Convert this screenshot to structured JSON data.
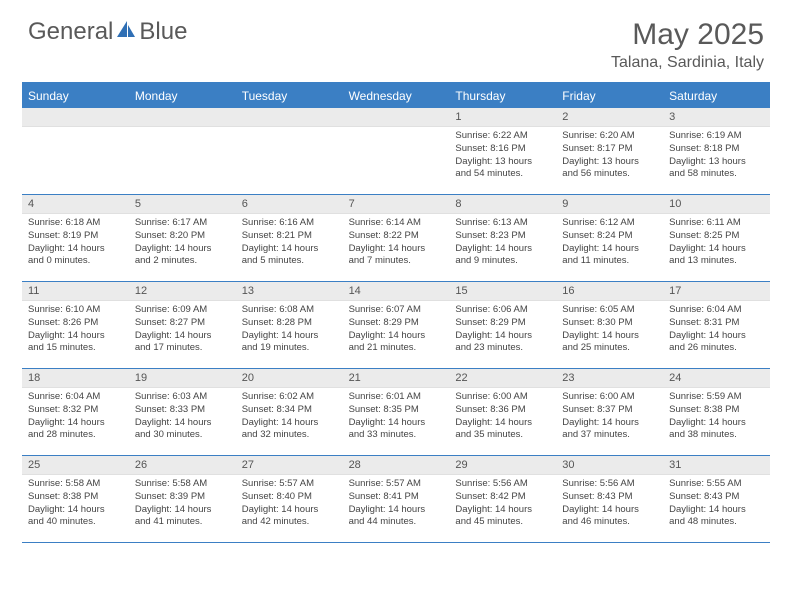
{
  "logo": {
    "text1": "General",
    "text2": "Blue",
    "icon_color": "#2f6fb5"
  },
  "title": "May 2025",
  "location": "Talana, Sardinia, Italy",
  "accent_color": "#3b7fc4",
  "daynum_bg": "#ebebeb",
  "day_names": [
    "Sunday",
    "Monday",
    "Tuesday",
    "Wednesday",
    "Thursday",
    "Friday",
    "Saturday"
  ],
  "weeks": [
    [
      null,
      null,
      null,
      null,
      {
        "n": "1",
        "sr": "6:22 AM",
        "ss": "8:16 PM",
        "dl": "13 hours and 54 minutes."
      },
      {
        "n": "2",
        "sr": "6:20 AM",
        "ss": "8:17 PM",
        "dl": "13 hours and 56 minutes."
      },
      {
        "n": "3",
        "sr": "6:19 AM",
        "ss": "8:18 PM",
        "dl": "13 hours and 58 minutes."
      }
    ],
    [
      {
        "n": "4",
        "sr": "6:18 AM",
        "ss": "8:19 PM",
        "dl": "14 hours and 0 minutes."
      },
      {
        "n": "5",
        "sr": "6:17 AM",
        "ss": "8:20 PM",
        "dl": "14 hours and 2 minutes."
      },
      {
        "n": "6",
        "sr": "6:16 AM",
        "ss": "8:21 PM",
        "dl": "14 hours and 5 minutes."
      },
      {
        "n": "7",
        "sr": "6:14 AM",
        "ss": "8:22 PM",
        "dl": "14 hours and 7 minutes."
      },
      {
        "n": "8",
        "sr": "6:13 AM",
        "ss": "8:23 PM",
        "dl": "14 hours and 9 minutes."
      },
      {
        "n": "9",
        "sr": "6:12 AM",
        "ss": "8:24 PM",
        "dl": "14 hours and 11 minutes."
      },
      {
        "n": "10",
        "sr": "6:11 AM",
        "ss": "8:25 PM",
        "dl": "14 hours and 13 minutes."
      }
    ],
    [
      {
        "n": "11",
        "sr": "6:10 AM",
        "ss": "8:26 PM",
        "dl": "14 hours and 15 minutes."
      },
      {
        "n": "12",
        "sr": "6:09 AM",
        "ss": "8:27 PM",
        "dl": "14 hours and 17 minutes."
      },
      {
        "n": "13",
        "sr": "6:08 AM",
        "ss": "8:28 PM",
        "dl": "14 hours and 19 minutes."
      },
      {
        "n": "14",
        "sr": "6:07 AM",
        "ss": "8:29 PM",
        "dl": "14 hours and 21 minutes."
      },
      {
        "n": "15",
        "sr": "6:06 AM",
        "ss": "8:29 PM",
        "dl": "14 hours and 23 minutes."
      },
      {
        "n": "16",
        "sr": "6:05 AM",
        "ss": "8:30 PM",
        "dl": "14 hours and 25 minutes."
      },
      {
        "n": "17",
        "sr": "6:04 AM",
        "ss": "8:31 PM",
        "dl": "14 hours and 26 minutes."
      }
    ],
    [
      {
        "n": "18",
        "sr": "6:04 AM",
        "ss": "8:32 PM",
        "dl": "14 hours and 28 minutes."
      },
      {
        "n": "19",
        "sr": "6:03 AM",
        "ss": "8:33 PM",
        "dl": "14 hours and 30 minutes."
      },
      {
        "n": "20",
        "sr": "6:02 AM",
        "ss": "8:34 PM",
        "dl": "14 hours and 32 minutes."
      },
      {
        "n": "21",
        "sr": "6:01 AM",
        "ss": "8:35 PM",
        "dl": "14 hours and 33 minutes."
      },
      {
        "n": "22",
        "sr": "6:00 AM",
        "ss": "8:36 PM",
        "dl": "14 hours and 35 minutes."
      },
      {
        "n": "23",
        "sr": "6:00 AM",
        "ss": "8:37 PM",
        "dl": "14 hours and 37 minutes."
      },
      {
        "n": "24",
        "sr": "5:59 AM",
        "ss": "8:38 PM",
        "dl": "14 hours and 38 minutes."
      }
    ],
    [
      {
        "n": "25",
        "sr": "5:58 AM",
        "ss": "8:38 PM",
        "dl": "14 hours and 40 minutes."
      },
      {
        "n": "26",
        "sr": "5:58 AM",
        "ss": "8:39 PM",
        "dl": "14 hours and 41 minutes."
      },
      {
        "n": "27",
        "sr": "5:57 AM",
        "ss": "8:40 PM",
        "dl": "14 hours and 42 minutes."
      },
      {
        "n": "28",
        "sr": "5:57 AM",
        "ss": "8:41 PM",
        "dl": "14 hours and 44 minutes."
      },
      {
        "n": "29",
        "sr": "5:56 AM",
        "ss": "8:42 PM",
        "dl": "14 hours and 45 minutes."
      },
      {
        "n": "30",
        "sr": "5:56 AM",
        "ss": "8:43 PM",
        "dl": "14 hours and 46 minutes."
      },
      {
        "n": "31",
        "sr": "5:55 AM",
        "ss": "8:43 PM",
        "dl": "14 hours and 48 minutes."
      }
    ]
  ],
  "labels": {
    "sunrise": "Sunrise:",
    "sunset": "Sunset:",
    "daylight": "Daylight:"
  }
}
